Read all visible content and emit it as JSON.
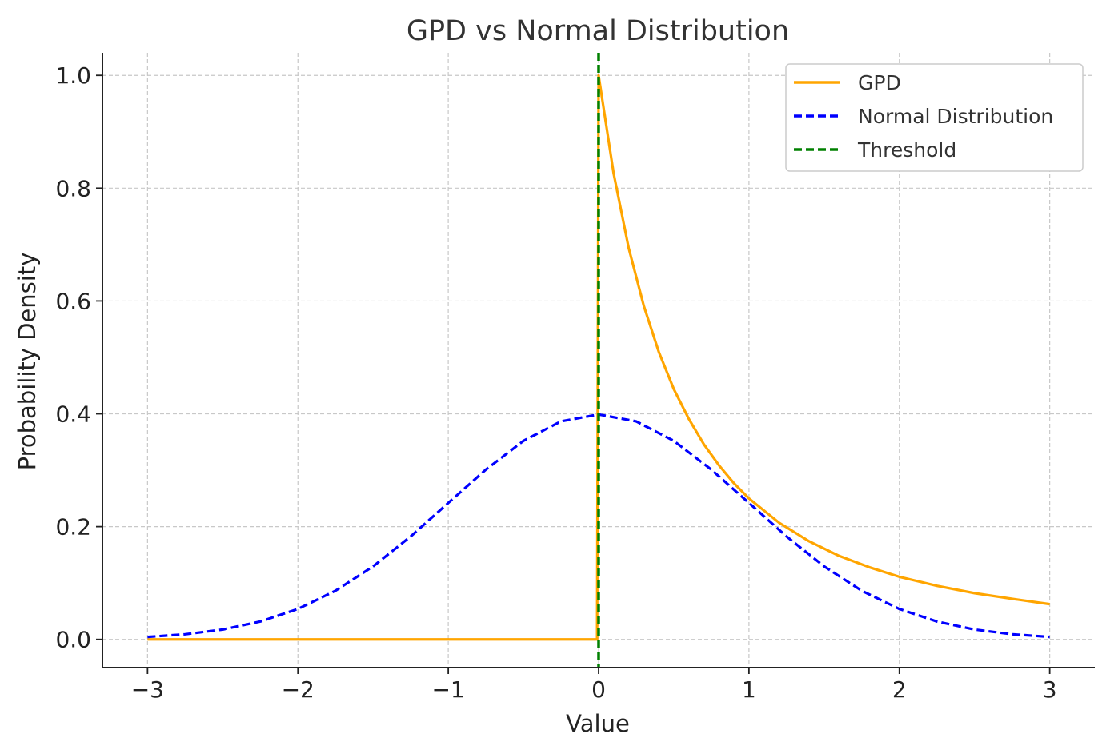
{
  "chart_data": {
    "type": "line",
    "title": "GPD vs Normal Distribution",
    "xlabel": "Value",
    "ylabel": "Probability Density",
    "xlim": [
      -3.3,
      3.3
    ],
    "ylim": [
      -0.05,
      1.04
    ],
    "x_ticks": [
      -3,
      -2,
      -1,
      0,
      1,
      2,
      3
    ],
    "x_tick_labels": [
      "−3",
      "−2",
      "−1",
      "0",
      "1",
      "2",
      "3"
    ],
    "y_ticks": [
      0.0,
      0.2,
      0.4,
      0.6,
      0.8,
      1.0
    ],
    "y_tick_labels": [
      "0.0",
      "0.2",
      "0.4",
      "0.6",
      "0.8",
      "1.0"
    ],
    "grid": true,
    "legend_position": "top-right",
    "series": [
      {
        "name": "GPD",
        "color": "#ffa500",
        "style": "solid",
        "x": [
          -3.0,
          -2.0,
          -1.0,
          -0.01,
          0.0,
          0.1,
          0.2,
          0.3,
          0.4,
          0.5,
          0.6,
          0.7,
          0.8,
          0.9,
          1.0,
          1.2,
          1.4,
          1.6,
          1.8,
          2.0,
          2.25,
          2.5,
          2.75,
          3.0
        ],
        "y": [
          0.0,
          0.0,
          0.0,
          0.0,
          1.0,
          0.826,
          0.694,
          0.592,
          0.51,
          0.444,
          0.391,
          0.346,
          0.309,
          0.277,
          0.25,
          0.207,
          0.174,
          0.148,
          0.128,
          0.111,
          0.095,
          0.082,
          0.072,
          0.0625
        ]
      },
      {
        "name": "Normal Distribution",
        "color": "#0000ff",
        "style": "dashed",
        "x": [
          -3.0,
          -2.75,
          -2.5,
          -2.25,
          -2.0,
          -1.75,
          -1.5,
          -1.25,
          -1.0,
          -0.75,
          -0.5,
          -0.25,
          0.0,
          0.25,
          0.5,
          0.75,
          1.0,
          1.25,
          1.5,
          1.75,
          2.0,
          2.25,
          2.5,
          2.75,
          3.0
        ],
        "y": [
          0.0044,
          0.0091,
          0.0175,
          0.0317,
          0.054,
          0.0863,
          0.1295,
          0.1826,
          0.242,
          0.3011,
          0.3521,
          0.3867,
          0.3989,
          0.3867,
          0.3521,
          0.3011,
          0.242,
          0.1826,
          0.1295,
          0.0863,
          0.054,
          0.0317,
          0.0175,
          0.0091,
          0.0044
        ]
      },
      {
        "name": "Threshold",
        "color": "#008000",
        "style": "dashed",
        "vertical_line_x": 0
      }
    ]
  }
}
